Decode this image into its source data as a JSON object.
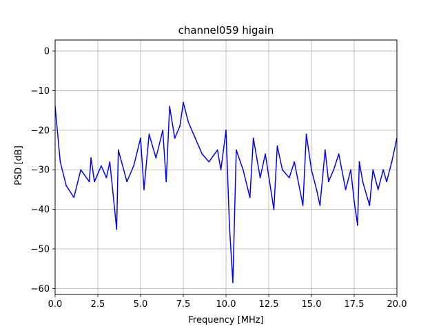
{
  "chart_data": {
    "type": "line",
    "title": "channel059 higain",
    "xlabel": "Frequency [MHz]",
    "ylabel": "PSD [dB]",
    "xlim": [
      0,
      20
    ],
    "ylim": [
      -61.5,
      2.8
    ],
    "xticks": [
      0,
      2.5,
      5,
      7.5,
      10,
      12.5,
      15,
      17.5,
      20
    ],
    "xtick_labels": [
      "0.0",
      "2.5",
      "5.0",
      "7.5",
      "10.0",
      "12.5",
      "15.0",
      "17.5",
      "20.0"
    ],
    "yticks": [
      0,
      -10,
      -20,
      -30,
      -40,
      -50,
      -60
    ],
    "ytick_labels": [
      "0",
      "−10",
      "−20",
      "−30",
      "−40",
      "−50",
      "−60"
    ],
    "grid": true,
    "legend": "none",
    "series": [
      {
        "color": "#0000ff",
        "x": [
          0,
          0.3,
          0.65,
          1.1,
          1.5,
          2.0,
          2.1,
          2.3,
          2.7,
          3.0,
          3.2,
          3.6,
          3.7,
          4.2,
          4.6,
          5.0,
          5.2,
          5.5,
          5.9,
          6.3,
          6.5,
          6.7,
          7.0,
          7.3,
          7.5,
          7.8,
          8.2,
          8.6,
          9.0,
          9.5,
          9.7,
          10.0,
          10.2,
          10.4,
          10.6,
          11.0,
          11.4,
          11.6,
          12.0,
          12.3,
          12.8,
          13.0,
          13.3,
          13.7,
          14.0,
          14.5,
          14.7,
          15.0,
          15.3,
          15.5,
          15.8,
          16.0,
          16.3,
          16.6,
          17.0,
          17.3,
          17.5,
          17.7,
          17.8,
          18.0,
          18.4,
          18.6,
          18.9,
          19.2,
          19.4,
          19.7,
          20.0
        ],
        "y": [
          -14,
          -28,
          -34,
          -37,
          -30,
          -33,
          -27,
          -33,
          -29,
          -32,
          -28,
          -45,
          -25,
          -33,
          -29,
          -22,
          -35,
          -21,
          -27,
          -20,
          -33,
          -14,
          -22,
          -19,
          -13,
          -18,
          -22,
          -26,
          -28,
          -25,
          -30,
          -20,
          -44,
          -58.5,
          -25,
          -30,
          -37,
          -22,
          -32,
          -26,
          -40,
          -24,
          -30,
          -32,
          -28,
          -39,
          -21,
          -30,
          -35,
          -39,
          -25,
          -33,
          -30,
          -26,
          -35,
          -30,
          -38,
          -44,
          -28,
          -33,
          -39,
          -30,
          -35,
          -30,
          -33,
          -28,
          -22
        ]
      }
    ]
  }
}
